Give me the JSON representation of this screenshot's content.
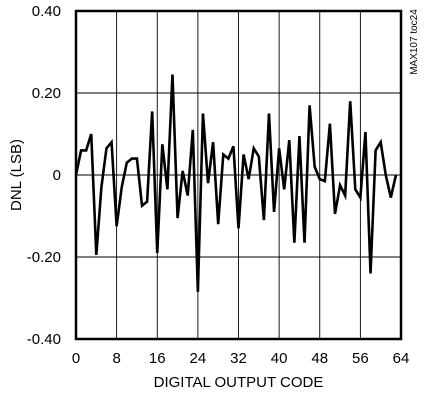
{
  "chart_data": {
    "type": "line",
    "xlabel": "DIGITAL OUTPUT CODE",
    "ylabel": "DNL (LSB)",
    "part_label": "MAX107 toc24",
    "xlim": [
      0,
      64
    ],
    "ylim": [
      -0.4,
      0.4
    ],
    "x_ticks": [
      0,
      8,
      16,
      24,
      32,
      40,
      48,
      56,
      64
    ],
    "x_tick_labels": [
      "0",
      "8",
      "16",
      "24",
      "32",
      "40",
      "48",
      "56",
      "64"
    ],
    "y_ticks": [
      0.4,
      0.2,
      0,
      -0.2,
      -0.4
    ],
    "y_tick_labels": [
      "0.40",
      "0.20",
      "0",
      "-0.20",
      "-0.40"
    ],
    "grid": true,
    "line_color": "#000000",
    "series": [
      {
        "x": [
          0,
          1,
          2,
          3,
          4,
          5,
          6,
          7,
          8,
          9,
          10,
          11,
          12,
          13,
          14,
          15,
          16,
          17,
          18,
          19,
          20,
          21,
          22,
          23,
          24,
          25,
          26,
          27,
          28,
          29,
          30,
          31,
          32,
          33,
          34,
          35,
          36,
          37,
          38,
          39,
          40,
          41,
          42,
          43,
          44,
          45,
          46,
          47,
          48,
          49,
          50,
          51,
          52,
          53,
          54,
          55,
          56,
          57,
          58,
          59,
          60,
          61,
          62,
          63
        ],
        "y": [
          0.0,
          0.06,
          0.06,
          0.1,
          -0.195,
          -0.03,
          0.065,
          0.08,
          -0.125,
          -0.03,
          0.03,
          0.04,
          0.04,
          -0.075,
          -0.065,
          0.155,
          -0.19,
          0.075,
          -0.035,
          0.245,
          -0.105,
          0.01,
          -0.05,
          0.11,
          -0.285,
          0.15,
          -0.02,
          0.08,
          -0.12,
          0.05,
          0.04,
          0.07,
          -0.13,
          0.05,
          -0.01,
          0.065,
          0.045,
          -0.11,
          0.15,
          -0.09,
          0.065,
          -0.035,
          0.085,
          -0.165,
          0.095,
          -0.165,
          0.17,
          0.02,
          -0.01,
          -0.015,
          0.125,
          -0.095,
          -0.025,
          -0.05,
          0.18,
          -0.035,
          -0.055,
          0.105,
          -0.24,
          0.06,
          0.08,
          0.0,
          -0.055,
          0.0
        ]
      }
    ]
  }
}
